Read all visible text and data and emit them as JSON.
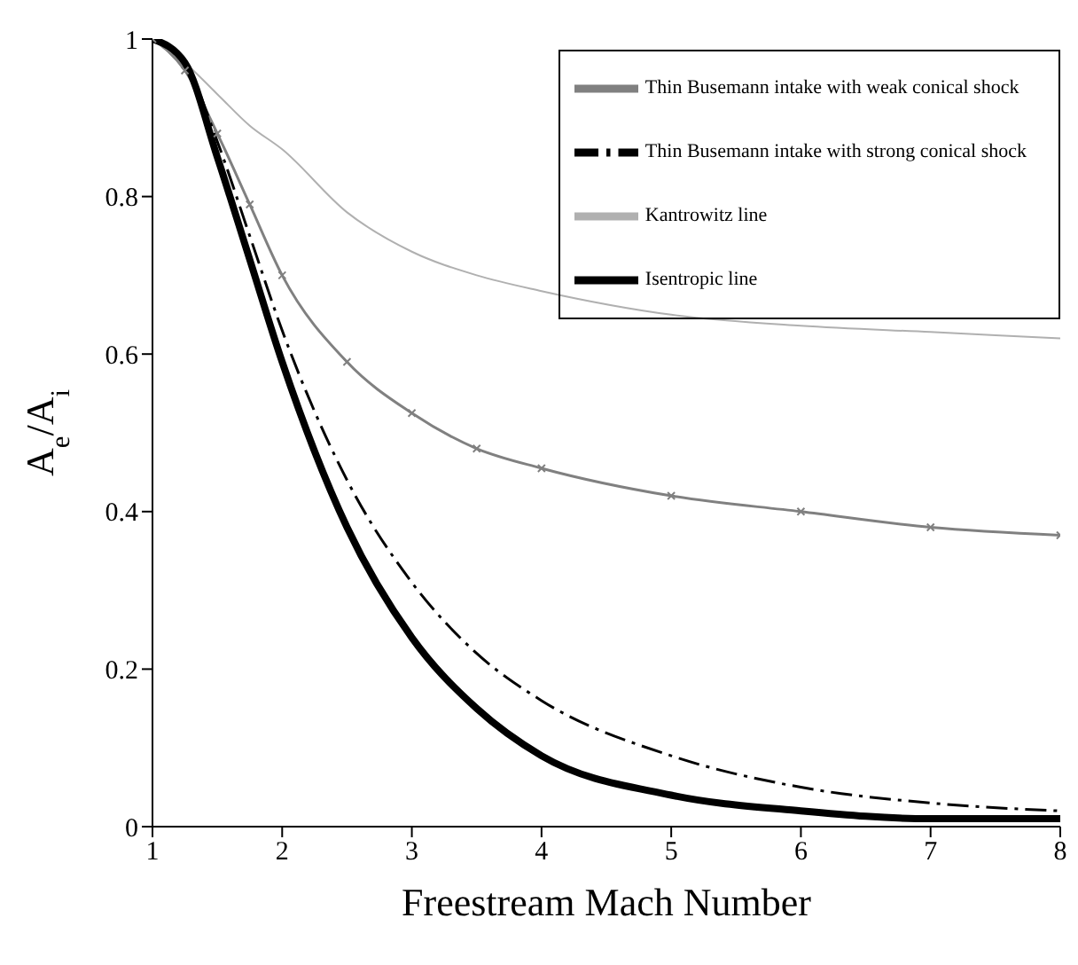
{
  "chart_data": {
    "type": "line",
    "xlabel": "Freestream Mach Number",
    "ylabel": "A$_{e}$/A$_{i}$",
    "x": [
      1,
      1.25,
      1.5,
      1.75,
      2,
      2.5,
      3,
      3.5,
      4,
      5,
      6,
      7,
      8
    ],
    "series": [
      {
        "name": "Thin Busemann intake with weak conical shock",
        "color": "#808080",
        "marker": "cross",
        "line_style": "solid",
        "values": [
          1,
          0.96,
          0.88,
          0.79,
          0.7,
          0.59,
          0.525,
          0.48,
          0.455,
          0.42,
          0.4,
          0.38,
          0.37
        ]
      },
      {
        "name": "Thin Busemann intake with strong conical shock",
        "color": "#000000",
        "marker": "none",
        "line_style": "dashed",
        "values": [
          1,
          0.97,
          0.87,
          0.75,
          0.63,
          0.44,
          0.31,
          0.22,
          0.16,
          0.09,
          0.05,
          0.03,
          0.02
        ]
      },
      {
        "name": "Kantrowitz line",
        "color": "#b0b0b0",
        "marker": "none",
        "line_style": "solid",
        "values": [
          1,
          0.97,
          0.93,
          0.89,
          0.86,
          0.78,
          0.73,
          0.7,
          0.68,
          0.65,
          0.636,
          0.628,
          0.62
        ]
      },
      {
        "name": "Isentropic line",
        "color": "#000000",
        "marker": "none",
        "line_style": "solid",
        "values": [
          1,
          0.97,
          0.85,
          0.72,
          0.59,
          0.38,
          0.24,
          0.15,
          0.09,
          0.04,
          0.02,
          0.01,
          0.01
        ]
      }
    ],
    "xlim": [
      1,
      8
    ],
    "xticks": [
      1,
      2,
      3,
      4,
      5,
      6,
      7,
      8
    ],
    "ylim": [
      0,
      1
    ],
    "yticks": [
      0,
      0.2,
      0.4,
      0.6,
      0.8,
      1
    ],
    "grid": false,
    "legend": "top right"
  }
}
